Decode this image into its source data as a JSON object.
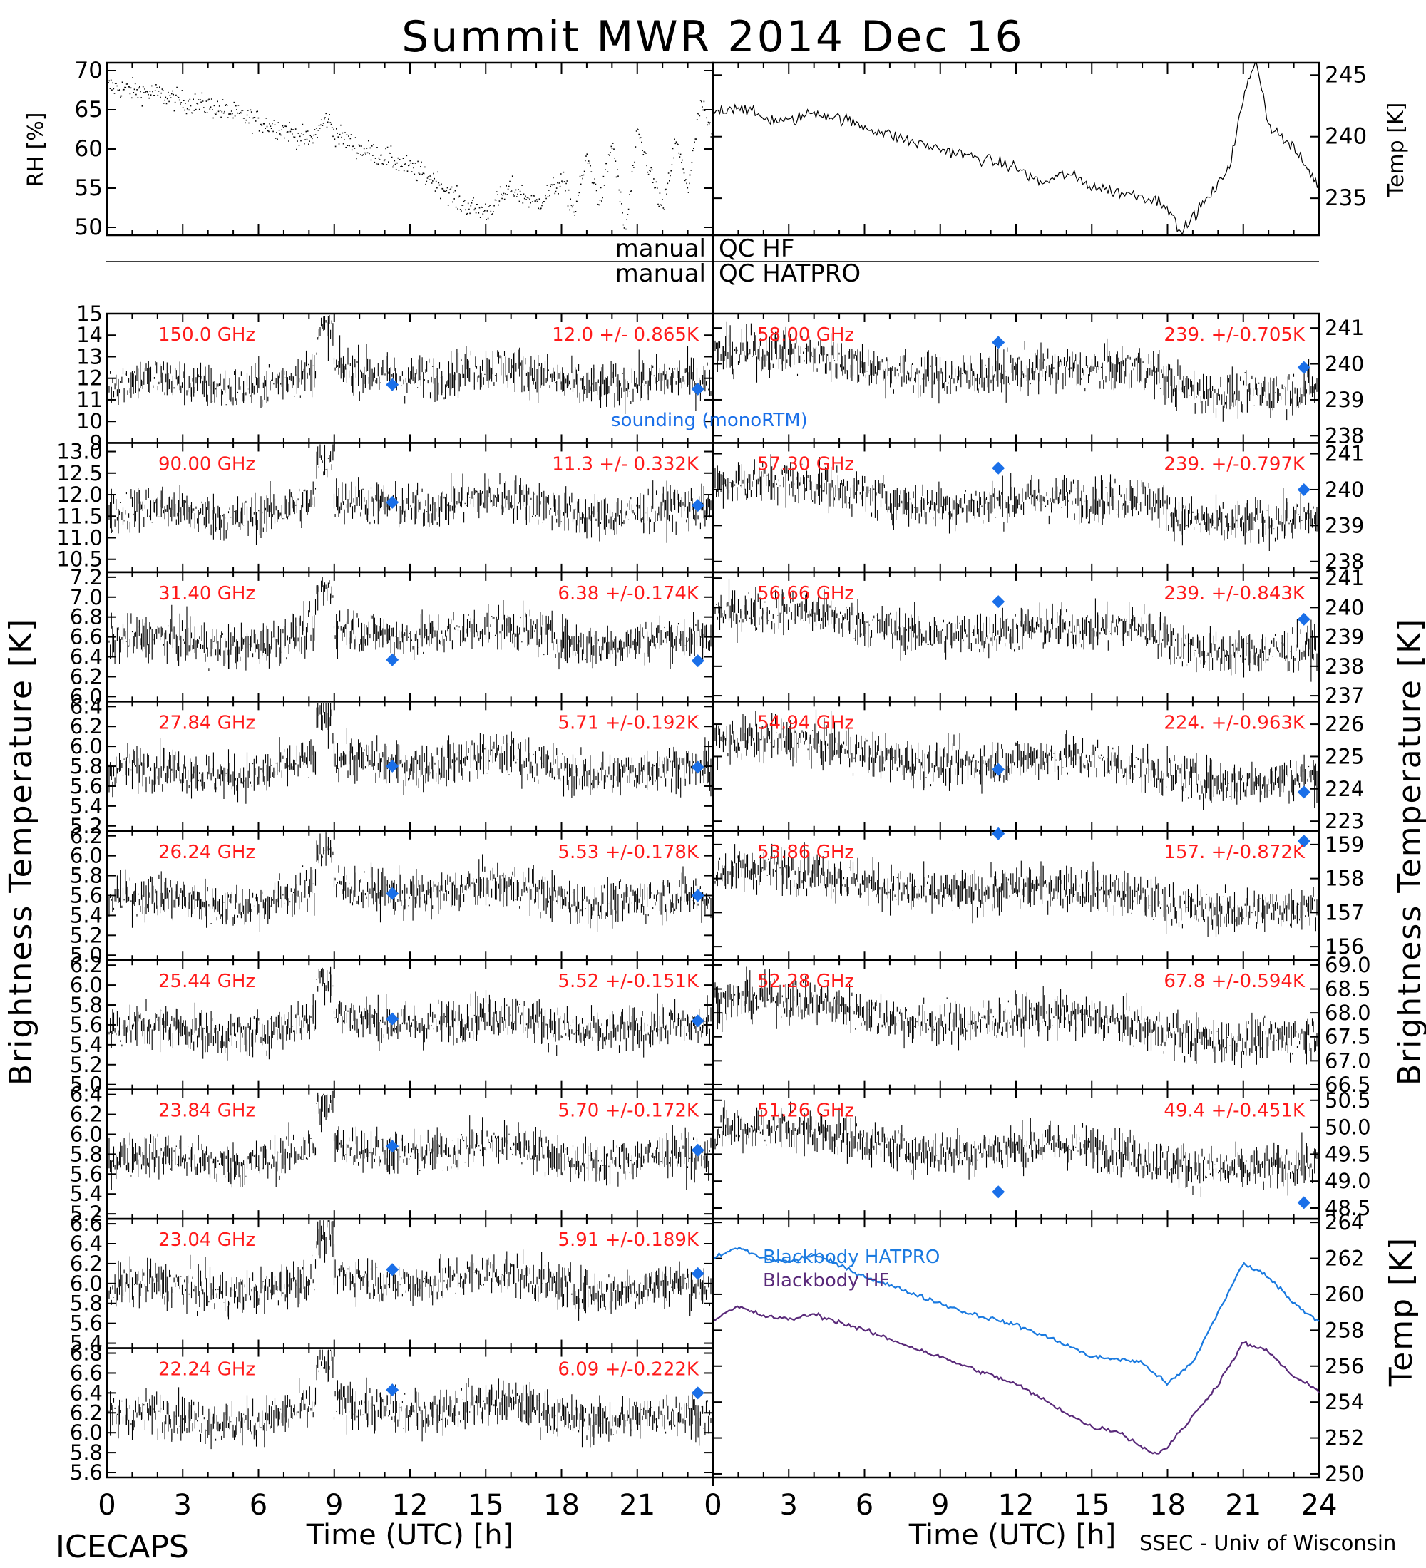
{
  "title": "Summit MWR 2014 Dec 16",
  "footer": {
    "left": "ICECAPS",
    "right": "SSEC - Univ of Wisconsin",
    "xlabel": "Time (UTC) [h]"
  },
  "qc": {
    "row1_left": "manual",
    "row1_right": "QC HF",
    "row2_left": "manual",
    "row2_right": "QC HATPRO"
  },
  "sounding_label": "sounding (monoRTM)",
  "colors": {
    "stat": "#ff1a1a",
    "sounding": "#1a6fe8",
    "bb_hatpro": "#1a7ae0",
    "bb_hf": "#5a2a7a"
  },
  "chart_data": [
    {
      "type": "scatter",
      "panel": "rh",
      "ylabel": "RH [%]",
      "ylim": [
        49,
        71
      ],
      "yticks": [
        50,
        55,
        60,
        65,
        70
      ],
      "x": [
        0,
        1,
        2,
        3,
        4,
        5,
        6,
        7,
        8,
        8.7,
        9,
        10,
        11,
        12,
        13,
        14,
        15,
        16,
        17,
        18,
        18.5,
        19,
        19.5,
        20,
        20.5,
        21,
        21.5,
        22,
        22.5,
        23,
        23.5,
        24
      ],
      "y": [
        68,
        67.5,
        67,
        66,
        65.5,
        64.5,
        63.5,
        62.5,
        61,
        64,
        62,
        60,
        59,
        57.5,
        56,
        53,
        52,
        55,
        53,
        56,
        52,
        59,
        53,
        61,
        49,
        62,
        57,
        52,
        61,
        55,
        66,
        61
      ]
    },
    {
      "type": "line",
      "panel": "temp",
      "ylabel": "Temp [K]",
      "ylim": [
        232,
        246
      ],
      "yticks": [
        235,
        240,
        245
      ],
      "x": [
        0,
        1,
        2,
        3,
        4,
        5,
        6,
        8,
        10,
        12,
        13,
        14,
        15,
        16,
        17,
        18,
        18.5,
        19,
        20,
        20.5,
        21,
        21.5,
        22,
        23,
        24
      ],
      "y": [
        242,
        242.5,
        241.5,
        241.2,
        242,
        241.5,
        240.8,
        239.5,
        238.5,
        237.5,
        236.2,
        237,
        236,
        235.5,
        235.2,
        234.5,
        232,
        233.5,
        236,
        238,
        243,
        246.5,
        241,
        239,
        236
      ]
    },
    {
      "type": "scatter",
      "channel": "150.0 GHz",
      "stat": "12.0 +/- 0.865K",
      "ylim": [
        9,
        15
      ],
      "yticks": [
        9,
        10,
        11,
        12,
        13,
        14,
        15
      ],
      "sounding": [
        [
          11.3,
          11.7
        ],
        [
          23.4,
          11.5
        ]
      ]
    },
    {
      "type": "scatter",
      "channel": "90.00 GHz",
      "stat": "11.3 +/- 0.332K",
      "ylim": [
        10.2,
        13.2
      ],
      "yticks": [
        10.5,
        11.0,
        11.5,
        12.0,
        12.5,
        13.0
      ],
      "sounding": [
        [
          11.3,
          11.82
        ],
        [
          23.4,
          11.75
        ]
      ]
    },
    {
      "type": "scatter",
      "channel": "31.40 GHz",
      "stat": "6.38 +/-0.174K",
      "ylim": [
        5.95,
        7.25
      ],
      "yticks": [
        6.0,
        6.2,
        6.4,
        6.6,
        6.8,
        7.0,
        7.2
      ],
      "sounding": [
        [
          11.3,
          6.37
        ],
        [
          23.4,
          6.36
        ]
      ]
    },
    {
      "type": "scatter",
      "channel": "27.84 GHz",
      "stat": "5.71 +/-0.192K",
      "ylim": [
        5.15,
        6.45
      ],
      "yticks": [
        5.2,
        5.4,
        5.6,
        5.8,
        6.0,
        6.2,
        6.4
      ],
      "sounding": [
        [
          11.3,
          5.8
        ],
        [
          23.4,
          5.79
        ]
      ]
    },
    {
      "type": "scatter",
      "channel": "26.24 GHz",
      "stat": "5.53 +/-0.178K",
      "ylim": [
        4.95,
        6.25
      ],
      "yticks": [
        5.0,
        5.2,
        5.4,
        5.6,
        5.8,
        6.0,
        6.2
      ],
      "sounding": [
        [
          11.3,
          5.62
        ],
        [
          23.4,
          5.6
        ]
      ]
    },
    {
      "type": "scatter",
      "channel": "25.44 GHz",
      "stat": "5.52 +/-0.151K",
      "ylim": [
        4.95,
        6.25
      ],
      "yticks": [
        5.0,
        5.2,
        5.4,
        5.6,
        5.8,
        6.0,
        6.2
      ],
      "sounding": [
        [
          11.3,
          5.66
        ],
        [
          23.4,
          5.64
        ]
      ]
    },
    {
      "type": "scatter",
      "channel": "23.84 GHz",
      "stat": "5.70 +/-0.172K",
      "ylim": [
        5.15,
        6.45
      ],
      "yticks": [
        5.2,
        5.4,
        5.6,
        5.8,
        6.0,
        6.2,
        6.4
      ],
      "sounding": [
        [
          11.3,
          5.88
        ],
        [
          23.4,
          5.84
        ]
      ]
    },
    {
      "type": "scatter",
      "channel": "23.04 GHz",
      "stat": "5.91 +/-0.189K",
      "ylim": [
        5.35,
        6.65
      ],
      "yticks": [
        5.4,
        5.6,
        5.8,
        6.0,
        6.2,
        6.4,
        6.6
      ],
      "sounding": [
        [
          11.3,
          6.14
        ],
        [
          23.4,
          6.1
        ]
      ]
    },
    {
      "type": "scatter",
      "channel": "22.24 GHz",
      "stat": "6.09 +/-0.222K",
      "ylim": [
        5.55,
        6.85
      ],
      "yticks": [
        5.6,
        5.8,
        6.0,
        6.2,
        6.4,
        6.6,
        6.8
      ],
      "sounding": [
        [
          11.3,
          6.43
        ],
        [
          23.4,
          6.4
        ]
      ]
    },
    {
      "type": "scatter",
      "channel": "58.00 GHz",
      "stat": "239. +/-0.705K",
      "ylim": [
        237.8,
        241.4
      ],
      "yticks": [
        238,
        239,
        240,
        241
      ],
      "sounding": [
        [
          11.3,
          240.6
        ],
        [
          23.4,
          239.9
        ]
      ]
    },
    {
      "type": "scatter",
      "channel": "57.30 GHz",
      "stat": "239. +/-0.797K",
      "ylim": [
        237.7,
        241.3
      ],
      "yticks": [
        238,
        239,
        240,
        241
      ],
      "sounding": [
        [
          11.3,
          240.6
        ],
        [
          23.4,
          240.0
        ]
      ]
    },
    {
      "type": "scatter",
      "channel": "56.66 GHz",
      "stat": "239. +/-0.843K",
      "ylim": [
        236.8,
        241.2
      ],
      "yticks": [
        237,
        238,
        239,
        240,
        241
      ],
      "sounding": [
        [
          11.3,
          240.2
        ],
        [
          23.4,
          239.6
        ]
      ]
    },
    {
      "type": "scatter",
      "channel": "54.94 GHz",
      "stat": "224. +/-0.963K",
      "ylim": [
        222.7,
        226.7
      ],
      "yticks": [
        223,
        224,
        225,
        226
      ],
      "sounding": [
        [
          11.3,
          224.6
        ],
        [
          23.4,
          223.9
        ]
      ]
    },
    {
      "type": "scatter",
      "channel": "53.86 GHz",
      "stat": "157. +/-0.872K",
      "ylim": [
        155.6,
        159.4
      ],
      "yticks": [
        156,
        157,
        158,
        159
      ],
      "sounding": [
        [
          11.3,
          159.7
        ],
        [
          23.4,
          159.1
        ]
      ]
    },
    {
      "type": "scatter",
      "channel": "52.28 GHz",
      "stat": "67.8 +/-0.594K",
      "ylim": [
        66.4,
        69.1
      ],
      "yticks": [
        66.5,
        67.0,
        67.5,
        68.0,
        68.5,
        69.0
      ],
      "sounding": []
    },
    {
      "type": "scatter",
      "channel": "51.26 GHz",
      "stat": "49.4 +/-0.451K",
      "ylim": [
        48.3,
        50.7
      ],
      "yticks": [
        48.5,
        49.0,
        49.5,
        50.0,
        50.5
      ],
      "sounding": [
        [
          11.3,
          48.8
        ],
        [
          23.4,
          48.6
        ]
      ]
    },
    {
      "type": "line",
      "panel": "blackbody",
      "ylabel": "Temp [K]",
      "ylim": [
        249.8,
        264.2
      ],
      "yticks": [
        250,
        252,
        254,
        256,
        258,
        260,
        262,
        264
      ],
      "series": [
        {
          "name": "Blackbody HATPRO",
          "x": [
            0,
            1,
            2,
            3,
            4,
            6,
            8,
            10,
            12,
            14,
            15,
            16,
            17,
            18,
            19,
            20,
            21,
            22,
            23,
            24
          ],
          "y": [
            262,
            262.6,
            262,
            261.8,
            262.2,
            261,
            260,
            259,
            258.3,
            257.2,
            256.5,
            256.4,
            256.2,
            255,
            256.2,
            259,
            261.7,
            261,
            259.5,
            258.5
          ]
        },
        {
          "name": "Blackbody HF",
          "x": [
            0,
            1,
            2,
            3,
            4,
            6,
            8,
            10,
            12,
            14,
            15,
            16,
            17,
            17.5,
            18,
            19,
            20,
            21,
            22,
            23,
            24
          ],
          "y": [
            258.6,
            259.3,
            258.8,
            258.6,
            258.9,
            258,
            257,
            256,
            255,
            253.4,
            252.6,
            252.4,
            251.5,
            251.1,
            251.5,
            253.2,
            255,
            257.3,
            256.8,
            255.4,
            254.6
          ]
        }
      ]
    }
  ]
}
